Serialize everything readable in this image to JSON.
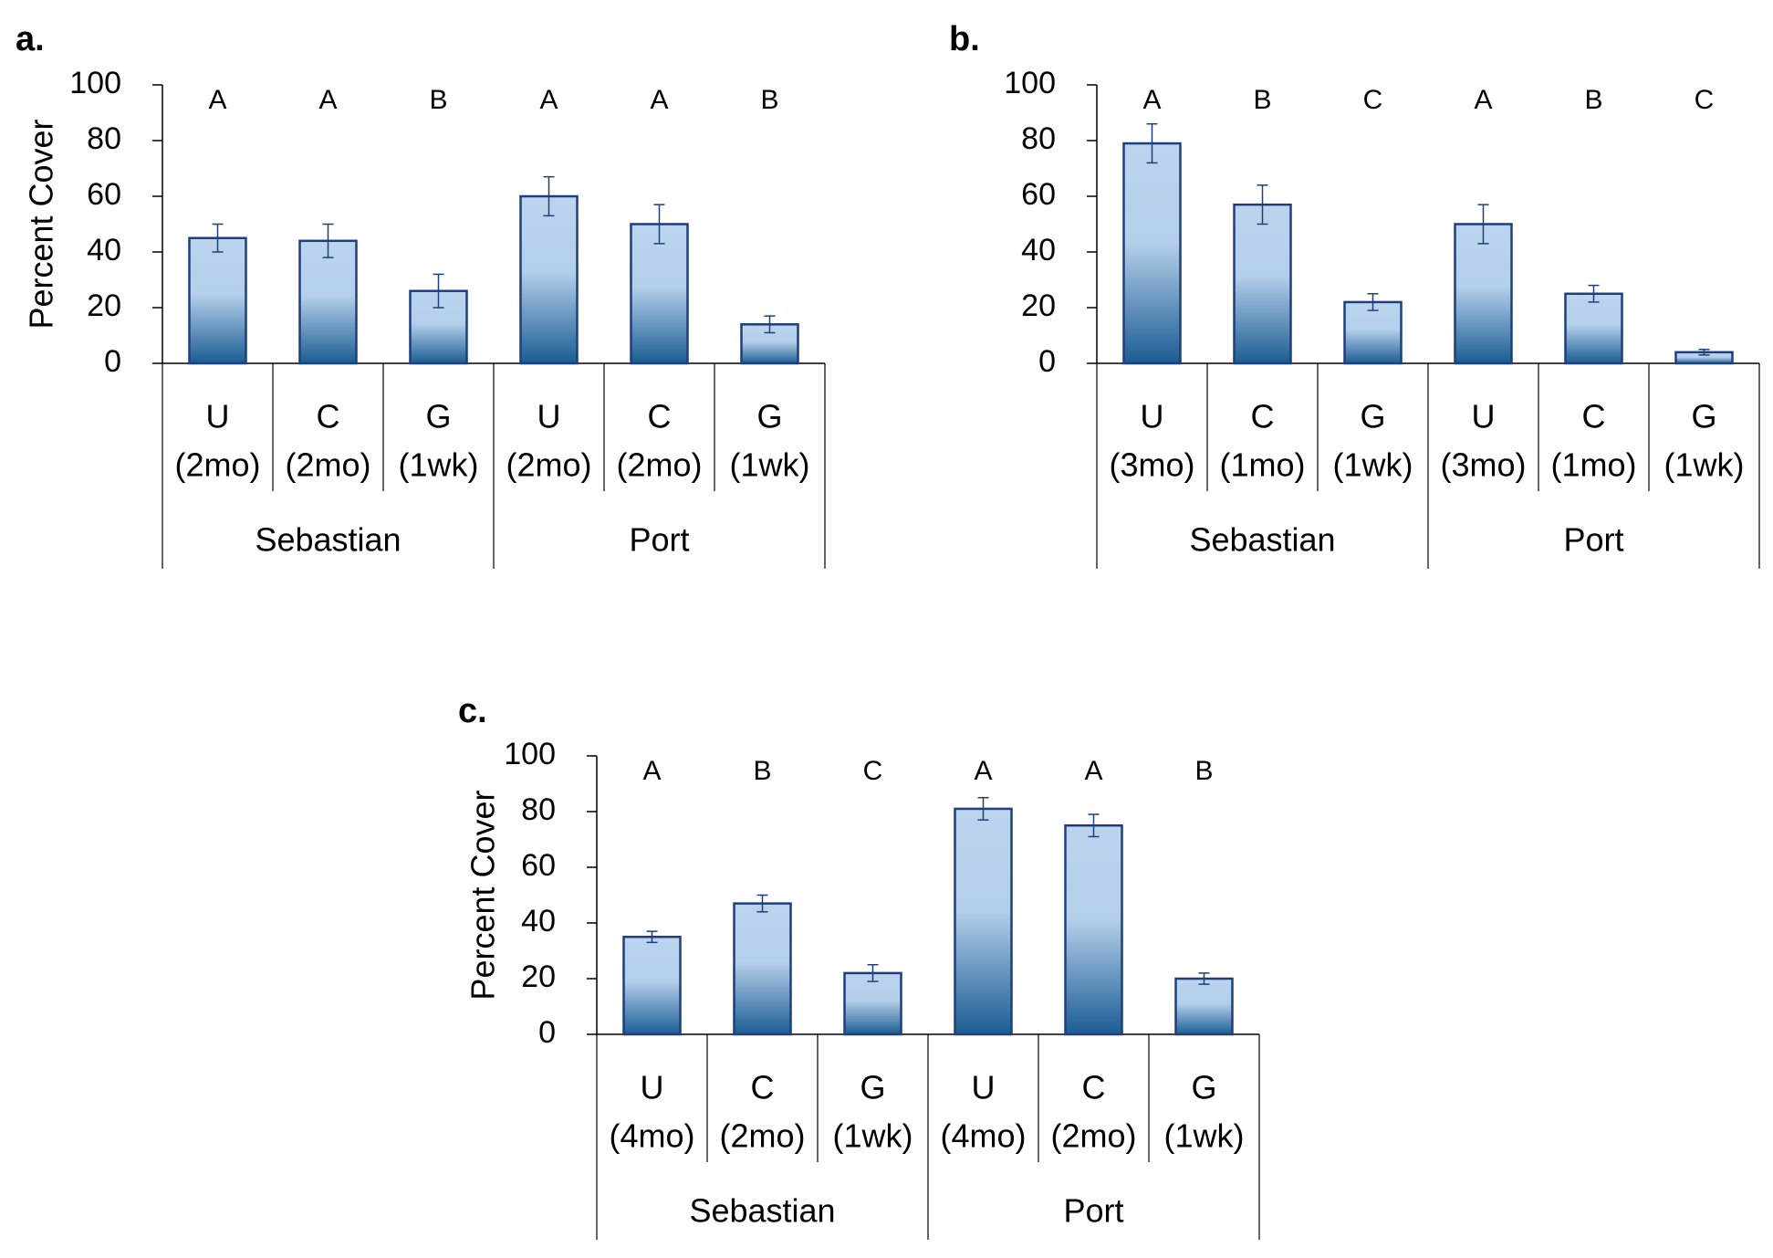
{
  "chart_data": [
    {
      "type": "bar",
      "panel": "a.",
      "ylabel": "Percent Cover",
      "ylim": [
        0,
        100
      ],
      "yticks": [
        "0",
        "20",
        "40",
        "60",
        "80",
        "100"
      ],
      "groups": [
        "Sebastian",
        "Port"
      ],
      "categories": [
        {
          "treatment": "U",
          "duration": "(2mo)",
          "group": "Sebastian"
        },
        {
          "treatment": "C",
          "duration": "(2mo)",
          "group": "Sebastian"
        },
        {
          "treatment": "G",
          "duration": "(1wk)",
          "group": "Sebastian"
        },
        {
          "treatment": "U",
          "duration": "(2mo)",
          "group": "Port"
        },
        {
          "treatment": "C",
          "duration": "(2mo)",
          "group": "Port"
        },
        {
          "treatment": "G",
          "duration": "(1wk)",
          "group": "Port"
        }
      ],
      "values": [
        45,
        44,
        26,
        60,
        50,
        14
      ],
      "errors": [
        5,
        6,
        6,
        7,
        7,
        3
      ],
      "significance": [
        "A",
        "A",
        "B",
        "A",
        "A",
        "B"
      ]
    },
    {
      "type": "bar",
      "panel": "b.",
      "ylabel": "",
      "ylim": [
        0,
        100
      ],
      "yticks": [
        "0",
        "20",
        "40",
        "60",
        "80",
        "100"
      ],
      "groups": [
        "Sebastian",
        "Port"
      ],
      "categories": [
        {
          "treatment": "U",
          "duration": "(3mo)",
          "group": "Sebastian"
        },
        {
          "treatment": "C",
          "duration": "(1mo)",
          "group": "Sebastian"
        },
        {
          "treatment": "G",
          "duration": "(1wk)",
          "group": "Sebastian"
        },
        {
          "treatment": "U",
          "duration": "(3mo)",
          "group": "Port"
        },
        {
          "treatment": "C",
          "duration": "(1mo)",
          "group": "Port"
        },
        {
          "treatment": "G",
          "duration": "(1wk)",
          "group": "Port"
        }
      ],
      "values": [
        79,
        57,
        22,
        50,
        25,
        4
      ],
      "errors": [
        7,
        7,
        3,
        7,
        3,
        1
      ],
      "significance": [
        "A",
        "B",
        "C",
        "A",
        "B",
        "C"
      ]
    },
    {
      "type": "bar",
      "panel": "c.",
      "ylabel": "Percent Cover",
      "ylim": [
        0,
        100
      ],
      "yticks": [
        "0",
        "20",
        "40",
        "60",
        "80",
        "100"
      ],
      "groups": [
        "Sebastian",
        "Port"
      ],
      "categories": [
        {
          "treatment": "U",
          "duration": "(4mo)",
          "group": "Sebastian"
        },
        {
          "treatment": "C",
          "duration": "(2mo)",
          "group": "Sebastian"
        },
        {
          "treatment": "G",
          "duration": "(1wk)",
          "group": "Sebastian"
        },
        {
          "treatment": "U",
          "duration": "(4mo)",
          "group": "Port"
        },
        {
          "treatment": "C",
          "duration": "(2mo)",
          "group": "Port"
        },
        {
          "treatment": "G",
          "duration": "(1wk)",
          "group": "Port"
        }
      ],
      "values": [
        35,
        47,
        22,
        81,
        75,
        20
      ],
      "errors": [
        2,
        3,
        3,
        4,
        4,
        2
      ],
      "significance": [
        "A",
        "B",
        "C",
        "A",
        "A",
        "B"
      ]
    }
  ],
  "colors": {
    "bar_light": "#bcd4ee",
    "bar_dark": "#1b5d93",
    "bar_stroke": "#1f3f7a",
    "error_bar": "#1f3f7a",
    "axis": "#000000"
  }
}
